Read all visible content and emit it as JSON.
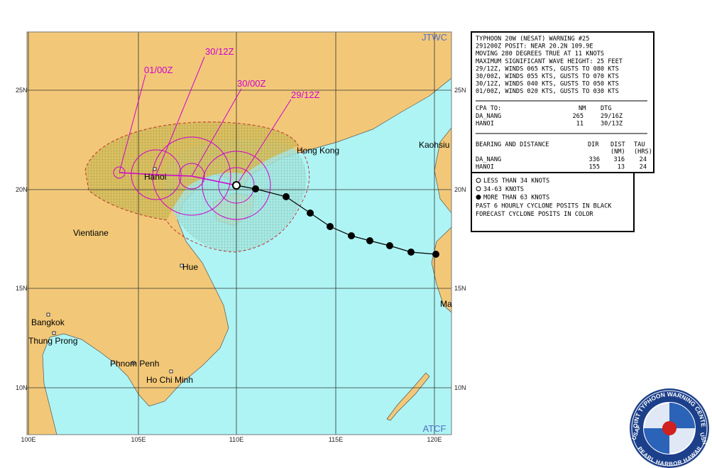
{
  "map": {
    "agency_top": "JTWC",
    "agency_bottom": "ATCF",
    "lon_labels": [
      "100E",
      "105E",
      "110E",
      "115E",
      "120E"
    ],
    "lat_labels": [
      "25N",
      "20N",
      "15N",
      "10N"
    ],
    "places": [
      "Hong Kong",
      "Kaohsiu",
      "Hanoi",
      "Vientiane",
      "Hue",
      "Bangkok",
      "Thung Prong",
      "Phnom Penh",
      "Ho Chi Minh",
      "Ma"
    ],
    "forecast_labels": [
      "29/12Z",
      "30/00Z",
      "30/12Z",
      "01/00Z"
    ]
  },
  "warning": {
    "lines": [
      "TYPHOON 20W (NESAT) WARNING #25",
      "291200Z POSIT: NEAR 20.2N 109.9E",
      "MOVING 280 DEGREES TRUE AT 11 KNOTS",
      "MAXIMUM SIGNIFICANT WAVE HEIGHT: 25 FEET",
      "29/12Z, WINDS 065 KTS, GUSTS TO 080 KTS",
      "30/00Z, WINDS 055 KTS, GUSTS TO 070 KTS",
      "30/12Z, WINDS 040 KTS, GUSTS TO 050 KTS",
      "01/00Z, WINDS 020 KTS, GUSTS TO 030 KTS"
    ],
    "cpa": {
      "header": [
        "CPA TO:",
        "NM",
        "DTG"
      ],
      "rows": [
        [
          "DA_NANG",
          "265",
          "29/16Z"
        ],
        [
          "HANOI",
          "11",
          "30/13Z"
        ]
      ]
    },
    "bearing": {
      "header": [
        "BEARING AND DISTANCE",
        "DIR",
        "DIST",
        "TAU"
      ],
      "subheader": [
        "(NM)",
        "(HRS)"
      ],
      "rows": [
        [
          "DA_NANG",
          "336",
          "316",
          "24"
        ],
        [
          "HANOI",
          "155",
          "13",
          "24"
        ]
      ]
    }
  },
  "legend": [
    "LESS THAN 34 KNOTS",
    "34-63 KNOTS",
    "MORE THAN 63 KNOTS",
    "PAST 6 HOURLY CYCLONE POSITS IN BLACK",
    "FORECAST CYCLONE POSITS IN COLOR"
  ],
  "logo": {
    "top": "JOINT TYPHOON WARNING CENTER",
    "bottom": "PEARL HARBOR HAWAII",
    "left": "USAF",
    "right": "USN"
  }
}
